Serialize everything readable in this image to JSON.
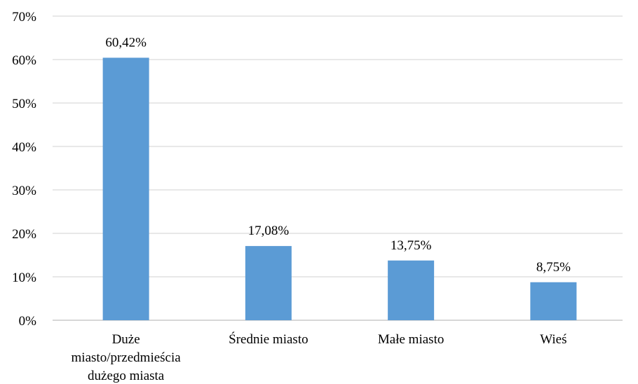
{
  "chart_data": {
    "type": "bar",
    "title": "",
    "xlabel": "",
    "ylabel": "",
    "ylim": [
      0,
      70
    ],
    "y_ticks": [
      "0%",
      "10%",
      "20%",
      "30%",
      "40%",
      "50%",
      "60%",
      "70%"
    ],
    "grid": true,
    "legend": "none",
    "bar_color": "#5b9bd5",
    "categories": [
      [
        "Duże",
        "miasto/przedmieścia",
        "dużego miasta"
      ],
      [
        "Średnie miasto"
      ],
      [
        "Małe miasto"
      ],
      [
        "Wieś"
      ]
    ],
    "values": [
      60.42,
      17.08,
      13.75,
      8.75
    ],
    "data_labels": [
      "60,42%",
      "17,08%",
      "13,75%",
      "8,75%"
    ]
  }
}
